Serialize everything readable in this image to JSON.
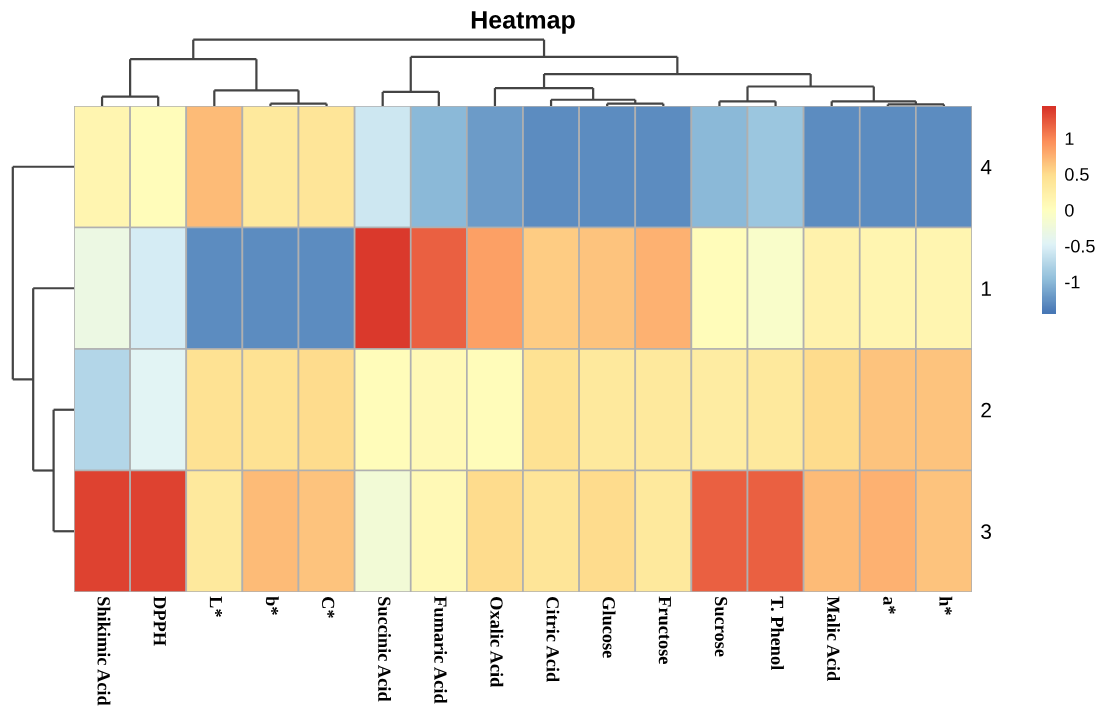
{
  "chart_data": {
    "type": "heatmap",
    "title": "Heatmap",
    "categories": [
      "Shikimic Acid",
      "DPPH",
      "L*",
      "b*",
      "C*",
      "Succinic Acid",
      "Fumaric Acid",
      "Oxalic Acid",
      "Citric Acid",
      "Glucose",
      "Fructose",
      "Sucrose",
      "T. Phenol",
      "Malic Acid",
      "a*",
      "h*"
    ],
    "y_categories": [
      "4",
      "1",
      "2",
      "3"
    ],
    "cells": [
      [
        0.15,
        0.05,
        0.7,
        0.35,
        0.4,
        -0.6,
        -1.0,
        -1.2,
        -1.3,
        -1.3,
        -1.3,
        -1.0,
        -0.9,
        -1.3,
        -1.3,
        -1.3
      ],
      [
        -0.3,
        -0.55,
        -1.3,
        -1.3,
        -1.3,
        1.4,
        1.2,
        0.85,
        0.6,
        0.65,
        0.75,
        0.05,
        -0.1,
        0.2,
        0.15,
        0.15
      ],
      [
        -0.75,
        -0.45,
        0.45,
        0.45,
        0.5,
        0.05,
        0.1,
        0.05,
        0.45,
        0.35,
        0.35,
        0.3,
        0.35,
        0.5,
        0.65,
        0.65
      ],
      [
        1.35,
        1.35,
        0.35,
        0.7,
        0.65,
        -0.2,
        0.1,
        0.5,
        0.4,
        0.5,
        0.35,
        1.2,
        1.2,
        0.7,
        0.75,
        0.65
      ]
    ],
    "clim": [
      -1.45,
      1.45
    ],
    "cticks": [
      1,
      0.5,
      0,
      {
        "value": -0.5,
        "label": "-0.5"
      },
      {
        "value": -1,
        "label": "-1"
      }
    ]
  }
}
